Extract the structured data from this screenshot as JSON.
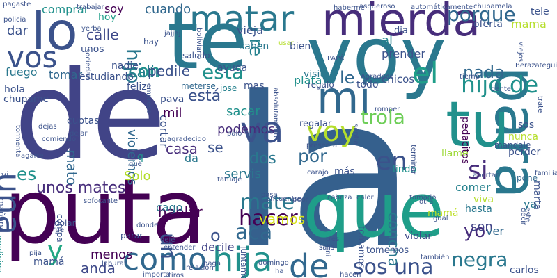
{
  "words": [
    {
      "text": "la",
      "color": "#35608d"
    },
    {
      "text": "de",
      "color": "#414487"
    },
    {
      "text": "te",
      "color": "#2a788e"
    },
    {
      "text": "voy",
      "color": "#2a788e"
    },
    {
      "text": "puta",
      "color": "#440154"
    },
    {
      "text": "que",
      "color": "#1f9e89"
    },
    {
      "text": "lo",
      "color": "#3b528b"
    },
    {
      "text": "para",
      "color": "#2a788e"
    },
    {
      "text": "mierda",
      "color": "#472d7b"
    },
    {
      "text": "tu",
      "color": "#21918c"
    },
    {
      "text": "mi",
      "color": "#31688e"
    },
    {
      "text": "matar",
      "color": "#2a788e"
    },
    {
      "text": "vos",
      "color": "#3b528b"
    },
    {
      "text": "el",
      "color": "#1f9e89"
    },
    {
      "text": "una",
      "color": "#3b528b"
    },
    {
      "text": "hijo de",
      "color": "#21918c"
    },
    {
      "text": "porque",
      "color": "#31688e"
    },
    {
      "text": "va",
      "color": "#3b528b"
    },
    {
      "text": "voy",
      "color": "#b5de2b"
    },
    {
      "text": "en",
      "color": "#3b528b"
    },
    {
      "text": "si",
      "color": "#472d7b"
    },
    {
      "text": "como",
      "color": "#31688e"
    },
    {
      "text": "hija",
      "color": "#21918c"
    },
    {
      "text": "de",
      "color": "#31688e"
    },
    {
      "text": "mate",
      "color": "#2a788e"
    },
    {
      "text": "hacer",
      "color": "#440154"
    },
    {
      "text": "aca",
      "color": "#31688e"
    },
    {
      "text": "y",
      "color": "#22a884"
    },
    {
      "text": "sos una",
      "color": "#3b528b"
    },
    {
      "text": "negra",
      "color": "#2a788e"
    },
    {
      "text": "unos mates",
      "color": "#472d7b"
    },
    {
      "text": "trola",
      "color": "#6ece58"
    },
    {
      "text": "esta",
      "color": "#21918c"
    },
    {
      "text": "con",
      "color": "#21918c"
    },
    {
      "text": "nada",
      "color": "#31688e"
    },
    {
      "text": "hijo",
      "color": "#2a788e"
    },
    {
      "text": "por",
      "color": "#31688e"
    },
    {
      "text": "es",
      "color": "#21918c"
    },
    {
      "text": "un",
      "color": "#3b528b"
    },
    {
      "text": "mato",
      "color": "#31688e"
    },
    {
      "text": "le",
      "color": "#31688e"
    },
    {
      "text": "re",
      "color": "#26828e"
    },
    {
      "text": "yo",
      "color": "#472d7b"
    },
    {
      "text": "se",
      "color": "#3b528b"
    },
    {
      "text": "dos",
      "color": "#2a788e"
    },
    {
      "text": "son",
      "color": "#414487"
    },
    {
      "text": "o",
      "color": "#3b528b"
    },
    {
      "text": "hablar",
      "color": "#440154"
    },
    {
      "text": "casa",
      "color": "#472d7b"
    },
    {
      "text": "anda",
      "color": "#3e4989"
    },
    {
      "text": "menos",
      "color": "#440154"
    },
    {
      "text": "viva",
      "color": "#b5de2b"
    },
    {
      "text": "ya",
      "color": "#2a788e"
    },
    {
      "text": "ver",
      "color": "#31688e"
    },
    {
      "text": "comer",
      "color": "#26828e"
    },
    {
      "text": "pedacitos",
      "color": "#440154"
    },
    {
      "text": "mamá",
      "color": "#bddf26"
    },
    {
      "text": "sacar",
      "color": "#21918c"
    },
    {
      "text": "podemos",
      "color": "#472d7b"
    },
    {
      "text": "vamos",
      "color": "#d8e219"
    },
    {
      "text": "concha",
      "color": "#2a788e"
    },
    {
      "text": "violar",
      "color": "#3e4989"
    },
    {
      "text": "servis",
      "color": "#2a788e"
    },
    {
      "text": "cago",
      "color": "#2a788e"
    },
    {
      "text": "decile",
      "color": "#414487"
    },
    {
      "text": "cortar",
      "color": "#3b528b"
    },
    {
      "text": "violemos",
      "color": "#31688e"
    },
    {
      "text": "está",
      "color": "#3b528b"
    },
    {
      "text": "mil",
      "color": "#440154"
    },
    {
      "text": "todo",
      "color": "#3b528b"
    },
    {
      "text": "plata",
      "color": "#21918c"
    },
    {
      "text": "tomar",
      "color": "#31688e"
    },
    {
      "text": "fuego",
      "color": "#2a788e"
    },
    {
      "text": "salir",
      "color": "#26828e"
    },
    {
      "text": "pedile",
      "color": "#3b528b"
    },
    {
      "text": "nadie",
      "color": "#3b528b"
    },
    {
      "text": "calle",
      "color": "#3e4989"
    },
    {
      "text": "dar",
      "color": "#3b528b"
    },
    {
      "text": "comprar",
      "color": "#21918c"
    },
    {
      "text": "soy",
      "color": "#440154"
    },
    {
      "text": "hoy",
      "color": "#1f9e89"
    },
    {
      "text": "cuando",
      "color": "#31688e"
    },
    {
      "text": "vieja",
      "color": "#3b528b"
    },
    {
      "text": "saben",
      "color": "#2a788e"
    },
    {
      "text": "bien",
      "color": "#3b528b"
    },
    {
      "text": "al",
      "color": "#26828e"
    },
    {
      "text": "prender",
      "color": "#3b528b"
    },
    {
      "text": "mama",
      "color": "#b5de2b"
    },
    {
      "text": "tele",
      "color": "#3b528b"
    },
    {
      "text": "oferta",
      "color": "#3b528b"
    },
    {
      "text": "dia",
      "color": "#3b528b"
    },
    {
      "text": "chicos",
      "color": "#3b528b"
    },
    {
      "text": "visitar",
      "color": "#2a788e"
    },
    {
      "text": "regalo",
      "color": "#3b528b"
    },
    {
      "text": "ayuda",
      "color": "#3b528b"
    },
    {
      "text": "mas",
      "color": "#3b528b"
    },
    {
      "text": "más",
      "color": "#3b528b"
    },
    {
      "text": "feliz",
      "color": "#3b528b"
    },
    {
      "text": "pava",
      "color": "#3b528b"
    },
    {
      "text": "jose",
      "color": "#26828e"
    },
    {
      "text": "Solo",
      "color": "#b5de2b"
    },
    {
      "text": "da",
      "color": "#2a788e"
    },
    {
      "text": "q",
      "color": "#21918c"
    },
    {
      "text": "regalar",
      "color": "#3b528b"
    },
    {
      "text": "lindo",
      "color": "#21918c"
    },
    {
      "text": "llame",
      "color": "#9fda3a"
    },
    {
      "text": "nunca",
      "color": "#b5de2b"
    },
    {
      "text": "sos",
      "color": "#3b528b"
    },
    {
      "text": "perder",
      "color": "#3b528b"
    },
    {
      "text": "mandale",
      "color": "#3b528b"
    },
    {
      "text": "pone",
      "color": "#31688e"
    },
    {
      "text": "marta",
      "color": "#3b528b"
    },
    {
      "text": "hasta",
      "color": "#2a788e"
    },
    {
      "text": "carlos",
      "color": "#3b528b"
    },
    {
      "text": "tomemos",
      "color": "#3b528b"
    },
    {
      "text": "tomamos",
      "color": "#3b528b"
    },
    {
      "text": "juntamos",
      "color": "#3b528b"
    },
    {
      "text": "chupame",
      "color": "#3b528b"
    },
    {
      "text": "hola",
      "color": "#3b528b"
    },
    {
      "text": "cuotas",
      "color": "#3b528b"
    },
    {
      "text": "vi",
      "color": "#3b528b"
    },
    {
      "text": "mañana",
      "color": "#3b528b"
    },
    {
      "text": "dolar",
      "color": "#3b528b"
    },
    {
      "text": "fue",
      "color": "#3b528b"
    },
    {
      "text": "parar",
      "color": "#3b528b"
    },
    {
      "text": "mamá",
      "color": "#3b528b"
    },
    {
      "text": "pija",
      "color": "#3b528b"
    },
    {
      "text": "compa",
      "color": "#3b528b"
    },
    {
      "text": "medicina",
      "color": "#21918c"
    },
    {
      "text": "estudiando",
      "color": "#3b528b"
    },
    {
      "text": "unos",
      "color": "#3b528b"
    },
    {
      "text": "hay",
      "color": "#3b528b"
    },
    {
      "text": "saludo",
      "color": "#3b528b"
    },
    {
      "text": "meterse",
      "color": "#31688e"
    },
    {
      "text": "trabajar",
      "color": "#3b528b"
    },
    {
      "text": "pagaste",
      "color": "#3b528b"
    },
    {
      "text": "policia",
      "color": "#3b528b"
    },
    {
      "text": "yerba",
      "color": "#3b528b"
    },
    {
      "text": "jajjaj",
      "color": "#3b528b"
    },
    {
      "text": "boliviano",
      "color": "#3b528b"
    },
    {
      "text": "usar",
      "color": "#b5de2b"
    },
    {
      "text": "haberme",
      "color": "#3b528b"
    },
    {
      "text": "asqueroso",
      "color": "#3b528b"
    },
    {
      "text": "automáticamente",
      "color": "#3b528b"
    },
    {
      "text": "chupamela",
      "color": "#3b528b"
    },
    {
      "text": "PAPÁ",
      "color": "#3b528b"
    },
    {
      "text": "Agradece",
      "color": "#3b528b"
    },
    {
      "text": "tiemp",
      "color": "#3b528b"
    },
    {
      "text": "viejos",
      "color": "#3b528b"
    },
    {
      "text": "Berazategui",
      "color": "#3b528b"
    },
    {
      "text": "gente",
      "color": "#3b528b"
    },
    {
      "text": "trate",
      "color": "#3b528b"
    },
    {
      "text": "romper",
      "color": "#3b528b"
    },
    {
      "text": "absolutamente",
      "color": "#3b528b"
    },
    {
      "text": "presentar",
      "color": "#3b528b"
    },
    {
      "text": "sentía",
      "color": "#3b528b"
    },
    {
      "text": "carajo",
      "color": "#3b528b"
    },
    {
      "text": "terminar",
      "color": "#3b528b"
    },
    {
      "text": "aportan",
      "color": "#3b528b"
    },
    {
      "text": "familia",
      "color": "#3b528b"
    },
    {
      "text": "agradecido",
      "color": "#3b528b"
    },
    {
      "text": "qué",
      "color": "#3b528b"
    },
    {
      "text": "palo",
      "color": "#3b528b"
    },
    {
      "text": "dejar",
      "color": "#3b528b"
    },
    {
      "text": "dejas",
      "color": "#3b528b"
    },
    {
      "text": "comiendo",
      "color": "#3b528b"
    },
    {
      "text": "tormenta",
      "color": "#3b528b"
    },
    {
      "text": "agarre",
      "color": "#3b528b"
    },
    {
      "text": "empresa",
      "color": "#3b528b"
    },
    {
      "text": "sociedad",
      "color": "#3b528b"
    },
    {
      "text": "tatuaje",
      "color": "#3b528b"
    },
    {
      "text": "encuentre",
      "color": "#3b528b"
    },
    {
      "text": "peor",
      "color": "#3b528b"
    },
    {
      "text": "cabeza",
      "color": "#3b528b"
    },
    {
      "text": "calor",
      "color": "#3b528b"
    },
    {
      "text": "tomado",
      "color": "#3b528b"
    },
    {
      "text": "otra",
      "color": "#3b528b"
    },
    {
      "text": "sofocante",
      "color": "#3b528b"
    },
    {
      "text": "dónde",
      "color": "#3b528b"
    },
    {
      "text": "dejé",
      "color": "#3b528b"
    },
    {
      "text": "entender",
      "color": "#3b528b"
    },
    {
      "text": "tres",
      "color": "#3b528b"
    },
    {
      "text": "salis",
      "color": "#3b528b"
    },
    {
      "text": "Igual",
      "color": "#3b528b"
    },
    {
      "text": "decir",
      "color": "#3b528b"
    },
    {
      "text": "este",
      "color": "#3b528b"
    },
    {
      "text": "también",
      "color": "#3b528b"
    },
    {
      "text": "laburar",
      "color": "#3b528b"
    },
    {
      "text": "importa",
      "color": "#3b528b"
    },
    {
      "text": "tiros",
      "color": "#3b528b"
    },
    {
      "text": "relación",
      "color": "#3b528b"
    },
    {
      "text": "paga",
      "color": "#3b528b"
    },
    {
      "text": "domingo",
      "color": "#3b528b"
    },
    {
      "text": "ha",
      "color": "#3b528b"
    },
    {
      "text": "hacen",
      "color": "#3b528b"
    },
    {
      "text": "ni",
      "color": "#3b528b"
    },
    {
      "text": "pasa",
      "color": "#3b528b"
    },
    {
      "text": "haces",
      "color": "#3b528b"
    },
    {
      "text": "nos",
      "color": "#3b528b"
    },
    {
      "text": "CV",
      "color": "#3b528b"
    }
  ]
}
